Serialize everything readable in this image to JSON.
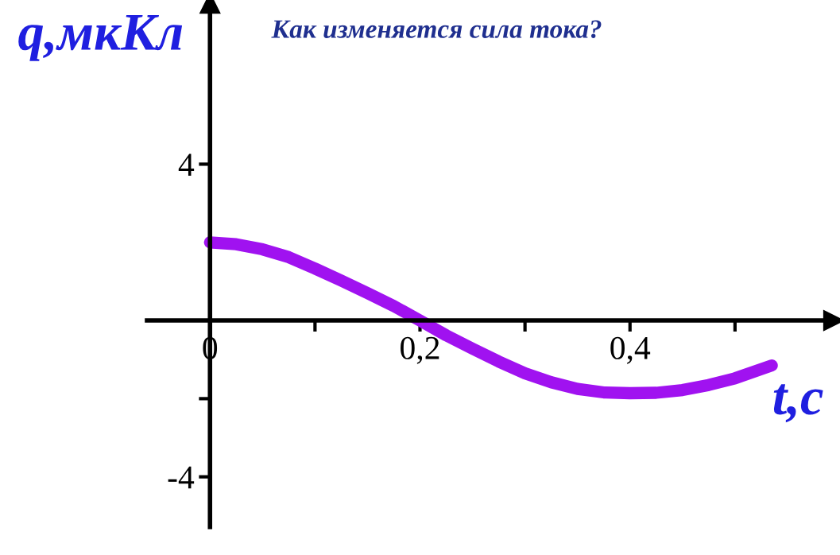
{
  "chart_data": {
    "type": "line",
    "title": "Как изменяется сила тока?",
    "xlabel": "t,с",
    "ylabel": "q,мкКл",
    "x": [
      0,
      0.025,
      0.05,
      0.075,
      0.1,
      0.125,
      0.15,
      0.175,
      0.2,
      0.225,
      0.25,
      0.275,
      0.3,
      0.325,
      0.35,
      0.375,
      0.4,
      0.425,
      0.45,
      0.475,
      0.5,
      0.535
    ],
    "series": [
      {
        "color": "#a012f0",
        "values": [
          2.0,
          1.95,
          1.82,
          1.62,
          1.33,
          1.02,
          0.7,
          0.37,
          0.0,
          -0.38,
          -0.72,
          -1.05,
          -1.35,
          -1.58,
          -1.75,
          -1.84,
          -1.86,
          -1.85,
          -1.78,
          -1.65,
          -1.48,
          -1.15
        ]
      }
    ],
    "xlim": [
      -0.2,
      0.6
    ],
    "ylim": [
      -6,
      8.2
    ],
    "xticks": [
      {
        "value": 0,
        "label": "0"
      },
      {
        "value": 0.1,
        "label": null
      },
      {
        "value": 0.2,
        "label": "0,2"
      },
      {
        "value": 0.3,
        "label": null
      },
      {
        "value": 0.4,
        "label": "0,4"
      },
      {
        "value": 0.5,
        "label": null
      }
    ],
    "yticks": [
      4,
      {
        "value": -2,
        "label": null
      },
      -4
    ],
    "grid": false,
    "legend": false,
    "line_style": "solid"
  }
}
